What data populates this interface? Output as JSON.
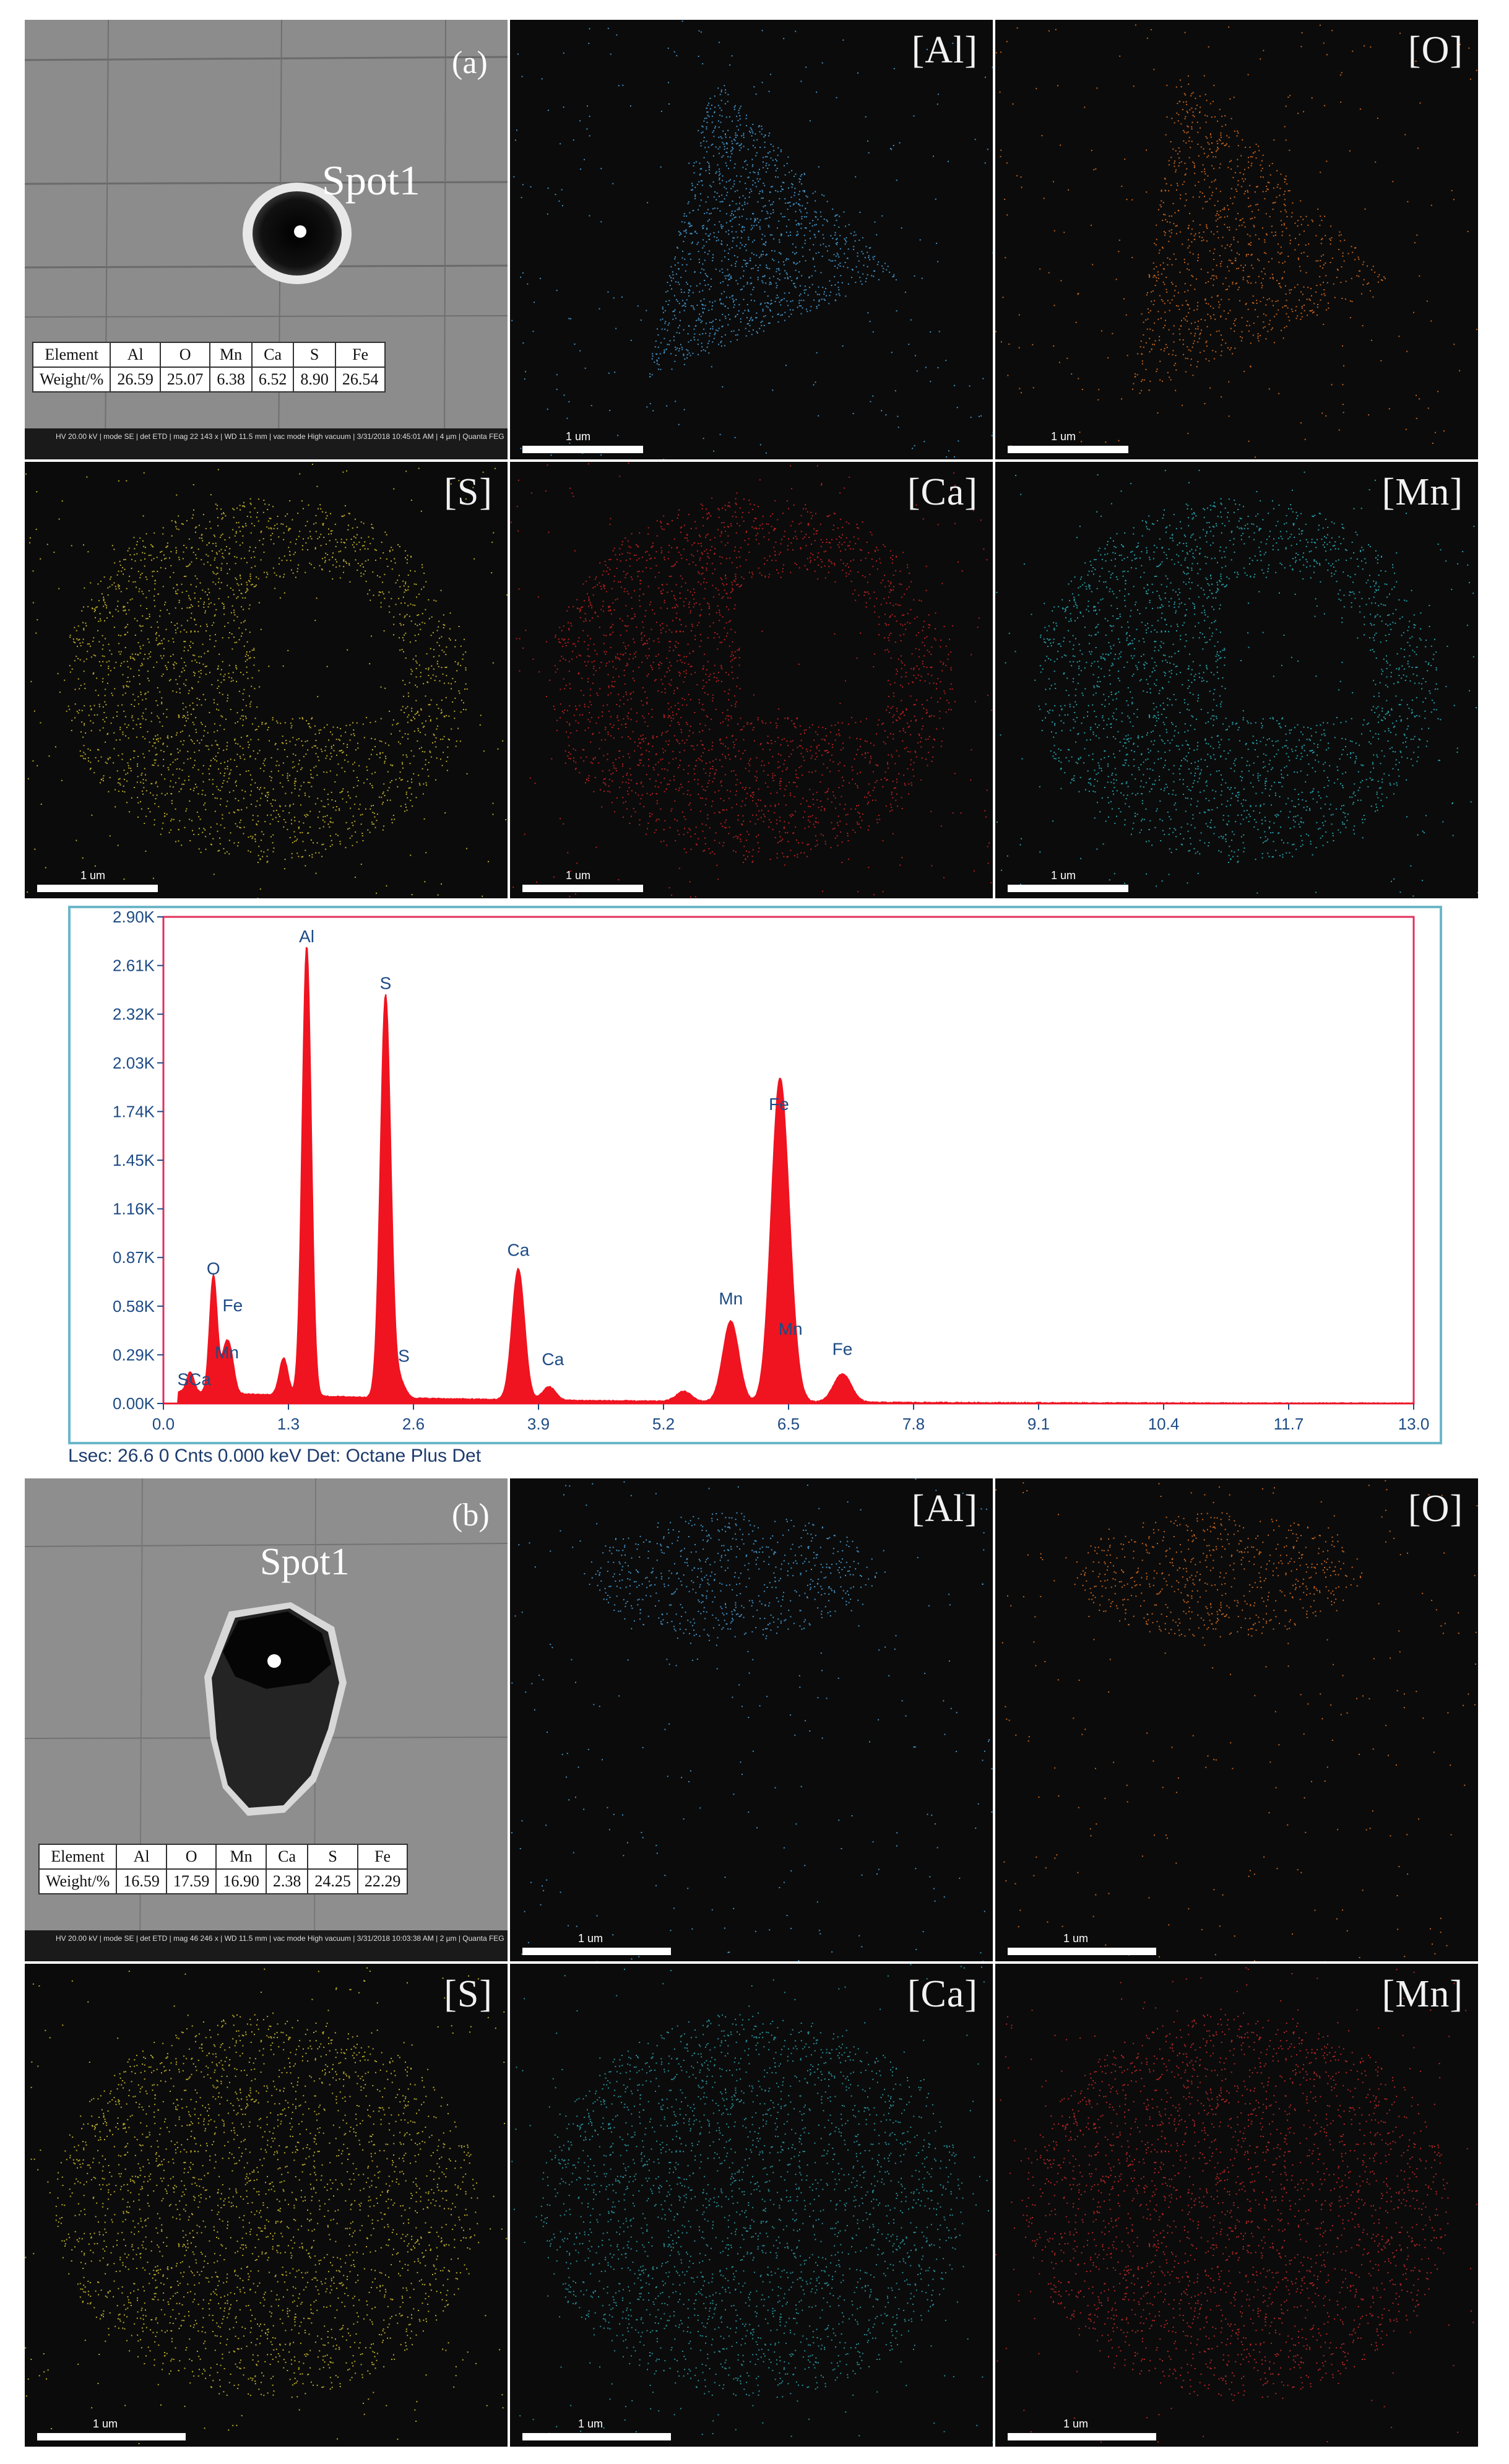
{
  "colors": {
    "Al": "#4aa8e6",
    "O": "#e4721e",
    "S": "#d7c52b",
    "Ca_a": "#d52222",
    "Mn_a": "#28b8c3",
    "Ca_b": "#2aa7b0",
    "Mn_b": "#d52a2a",
    "spectrum": "#ef1420",
    "label": "#1d4b85"
  },
  "part_a": {
    "panel_label": "(a)",
    "spot_label": "Spot1",
    "table": {
      "headers": [
        "Element",
        "Al",
        "O",
        "Mn",
        "Ca",
        "S",
        "Fe"
      ],
      "row_label": "Weight/%",
      "values": [
        "26.59",
        "25.07",
        "6.38",
        "6.52",
        "8.90",
        "26.54"
      ]
    },
    "sem_bar": "HV 20.00 kV | mode SE | det ETD | mag 22 143 x | WD 11.5 mm | vac mode High vacuum | 3/31/2018 10:45:01 AM | 4 µm | Quanta FEG",
    "maps": [
      "[Al]",
      "[O]",
      "[S]",
      "[Ca]",
      "[Mn]"
    ],
    "scale": "1 um"
  },
  "part_b": {
    "panel_label": "(b)",
    "spot_label": "Spot1",
    "table": {
      "headers": [
        "Element",
        "Al",
        "O",
        "Mn",
        "Ca",
        "S",
        "Fe"
      ],
      "row_label": "Weight/%",
      "values": [
        "16.59",
        "17.59",
        "16.90",
        "2.38",
        "24.25",
        "22.29"
      ]
    },
    "sem_bar": "HV 20.00 kV | mode SE | det ETD | mag 46 246 x | WD 11.5 mm | vac mode High vacuum | 3/31/2018 10:03:38 AM | 2 µm | Quanta FEG",
    "maps": [
      "[Al]",
      "[O]",
      "[S]",
      "[Ca]",
      "[Mn]"
    ],
    "scale": "1 um"
  },
  "chart_data": {
    "type": "line",
    "xlim": [
      0.0,
      13.0
    ],
    "ylim": [
      0,
      2.9
    ],
    "x_ticks": [
      "0.0",
      "1.3",
      "2.6",
      "3.9",
      "5.2",
      "6.5",
      "7.8",
      "9.1",
      "10.4",
      "11.7",
      "13.0"
    ],
    "y_ticks": [
      "0.00K",
      "0.29K",
      "0.58K",
      "0.87K",
      "1.16K",
      "1.45K",
      "1.74K",
      "2.03K",
      "2.32K",
      "2.61K",
      "2.90K"
    ],
    "peaks": [
      {
        "energy": 0.28,
        "height": 0.12
      },
      {
        "energy": 0.52,
        "height": 0.7
      },
      {
        "energy": 0.64,
        "height": 0.22
      },
      {
        "energy": 0.7,
        "height": 0.2
      },
      {
        "energy": 1.25,
        "height": 0.22
      },
      {
        "energy": 1.49,
        "height": 2.68
      },
      {
        "energy": 2.31,
        "height": 2.4
      },
      {
        "energy": 2.46,
        "height": 0.1
      },
      {
        "energy": 3.69,
        "height": 0.78
      },
      {
        "energy": 4.01,
        "height": 0.08
      },
      {
        "energy": 5.41,
        "height": 0.06
      },
      {
        "energy": 5.9,
        "height": 0.48
      },
      {
        "energy": 6.4,
        "height": 1.68
      },
      {
        "energy": 6.49,
        "height": 0.4
      },
      {
        "energy": 7.06,
        "height": 0.17
      }
    ],
    "annotations": [
      {
        "text": "Al",
        "x": 1.49,
        "y": 2.72
      },
      {
        "text": "S",
        "x": 2.31,
        "y": 2.44
      },
      {
        "text": "Ca",
        "x": 3.69,
        "y": 0.85
      },
      {
        "text": "Fe",
        "x": 6.4,
        "y": 1.72
      },
      {
        "text": "Mn",
        "x": 5.9,
        "y": 0.56
      },
      {
        "text": "Mn",
        "x": 6.52,
        "y": 0.38
      },
      {
        "text": "Fe",
        "x": 7.06,
        "y": 0.26
      },
      {
        "text": "O",
        "x": 0.52,
        "y": 0.74
      },
      {
        "text": "Fe",
        "x": 0.72,
        "y": 0.52
      },
      {
        "text": "Mn",
        "x": 0.66,
        "y": 0.24
      },
      {
        "text": "SCa",
        "x": 0.32,
        "y": 0.08
      },
      {
        "text": "S",
        "x": 2.5,
        "y": 0.22
      },
      {
        "text": "Ca",
        "x": 4.05,
        "y": 0.2
      }
    ]
  },
  "footer": "Lsec: 26.6 0 Cnts  0.000 keV Det: Octane Plus Det"
}
